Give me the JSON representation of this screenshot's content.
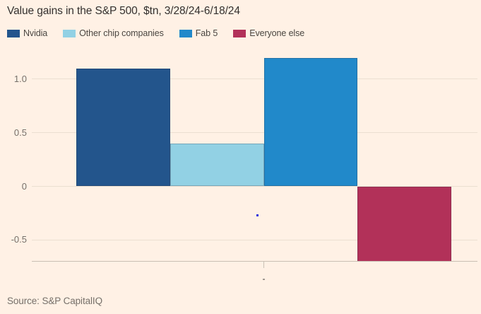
{
  "header": {
    "title": "Value gains in the S&P 500, $tn, 3/28/24-6/18/24"
  },
  "legend": {
    "items": [
      {
        "label": "Nvidia",
        "color": "#23558c"
      },
      {
        "label": "Other chip companies",
        "color": "#92d1e4"
      },
      {
        "label": "Fab 5",
        "color": "#2189ca"
      },
      {
        "label": "Everyone else",
        "color": "#b23159"
      }
    ]
  },
  "chart_data": {
    "type": "bar",
    "title": "Value gains in the S&P 500, $tn, 3/28/24-6/18/24",
    "categories": [
      "Nvidia",
      "Other chip companies",
      "Fab 5",
      "Everyone else"
    ],
    "values": [
      1.1,
      0.4,
      1.2,
      -0.7
    ],
    "bar_colors": [
      "#23558c",
      "#92d1e4",
      "#2189ca",
      "#b23159"
    ],
    "xlabel": "-",
    "ylabel": "",
    "ylim": [
      -0.7,
      1.24
    ],
    "yticks": [
      1.0,
      0.5,
      0,
      -0.5
    ],
    "ytick_labels": [
      "1.0",
      "0.5",
      "0",
      "-0.5"
    ],
    "grid": true,
    "legend_position": "top",
    "bars_adjacent": true
  },
  "axis": {
    "x_tick_label": "-"
  },
  "footer": {
    "source": "Source: S&P CapitalIQ"
  },
  "colors": {
    "background": "#fff1e5",
    "title_text": "#33302e",
    "legend_text": "#4a4641",
    "axis_text": "#76706a",
    "gridline": "#ebdfd1",
    "axis_line": "#c9c0b4",
    "bar_stroke": "rgba(40,45,60,0.25)",
    "stray_dot": "#2b2bdd"
  }
}
